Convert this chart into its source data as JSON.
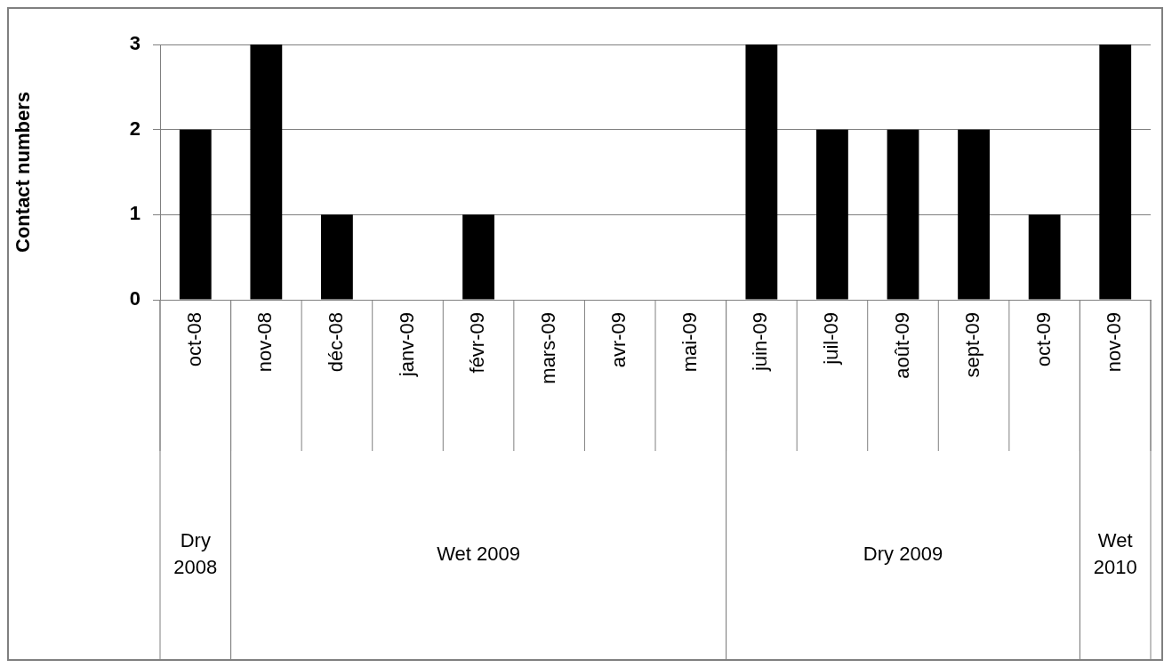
{
  "chart_data": {
    "type": "bar",
    "ylabel": "Contact numbers",
    "categories": [
      "oct-08",
      "nov-08",
      "déc-08",
      "janv-09",
      "févr-09",
      "mars-09",
      "avr-09",
      "mai-09",
      "juin-09",
      "juil-09",
      "août-09",
      "sept-09",
      "oct-09",
      "nov-09"
    ],
    "values": [
      2,
      3,
      1,
      0,
      1,
      0,
      0,
      0,
      3,
      2,
      2,
      2,
      1,
      3
    ],
    "color": "#000000",
    "ylim": [
      0,
      3
    ],
    "yticks": [
      0,
      1,
      2,
      3
    ],
    "grid": "y",
    "legend": false,
    "annotations": [
      "Dry 2008",
      "Wet 2009",
      "Dry 2009",
      "Wet 2010"
    ]
  }
}
